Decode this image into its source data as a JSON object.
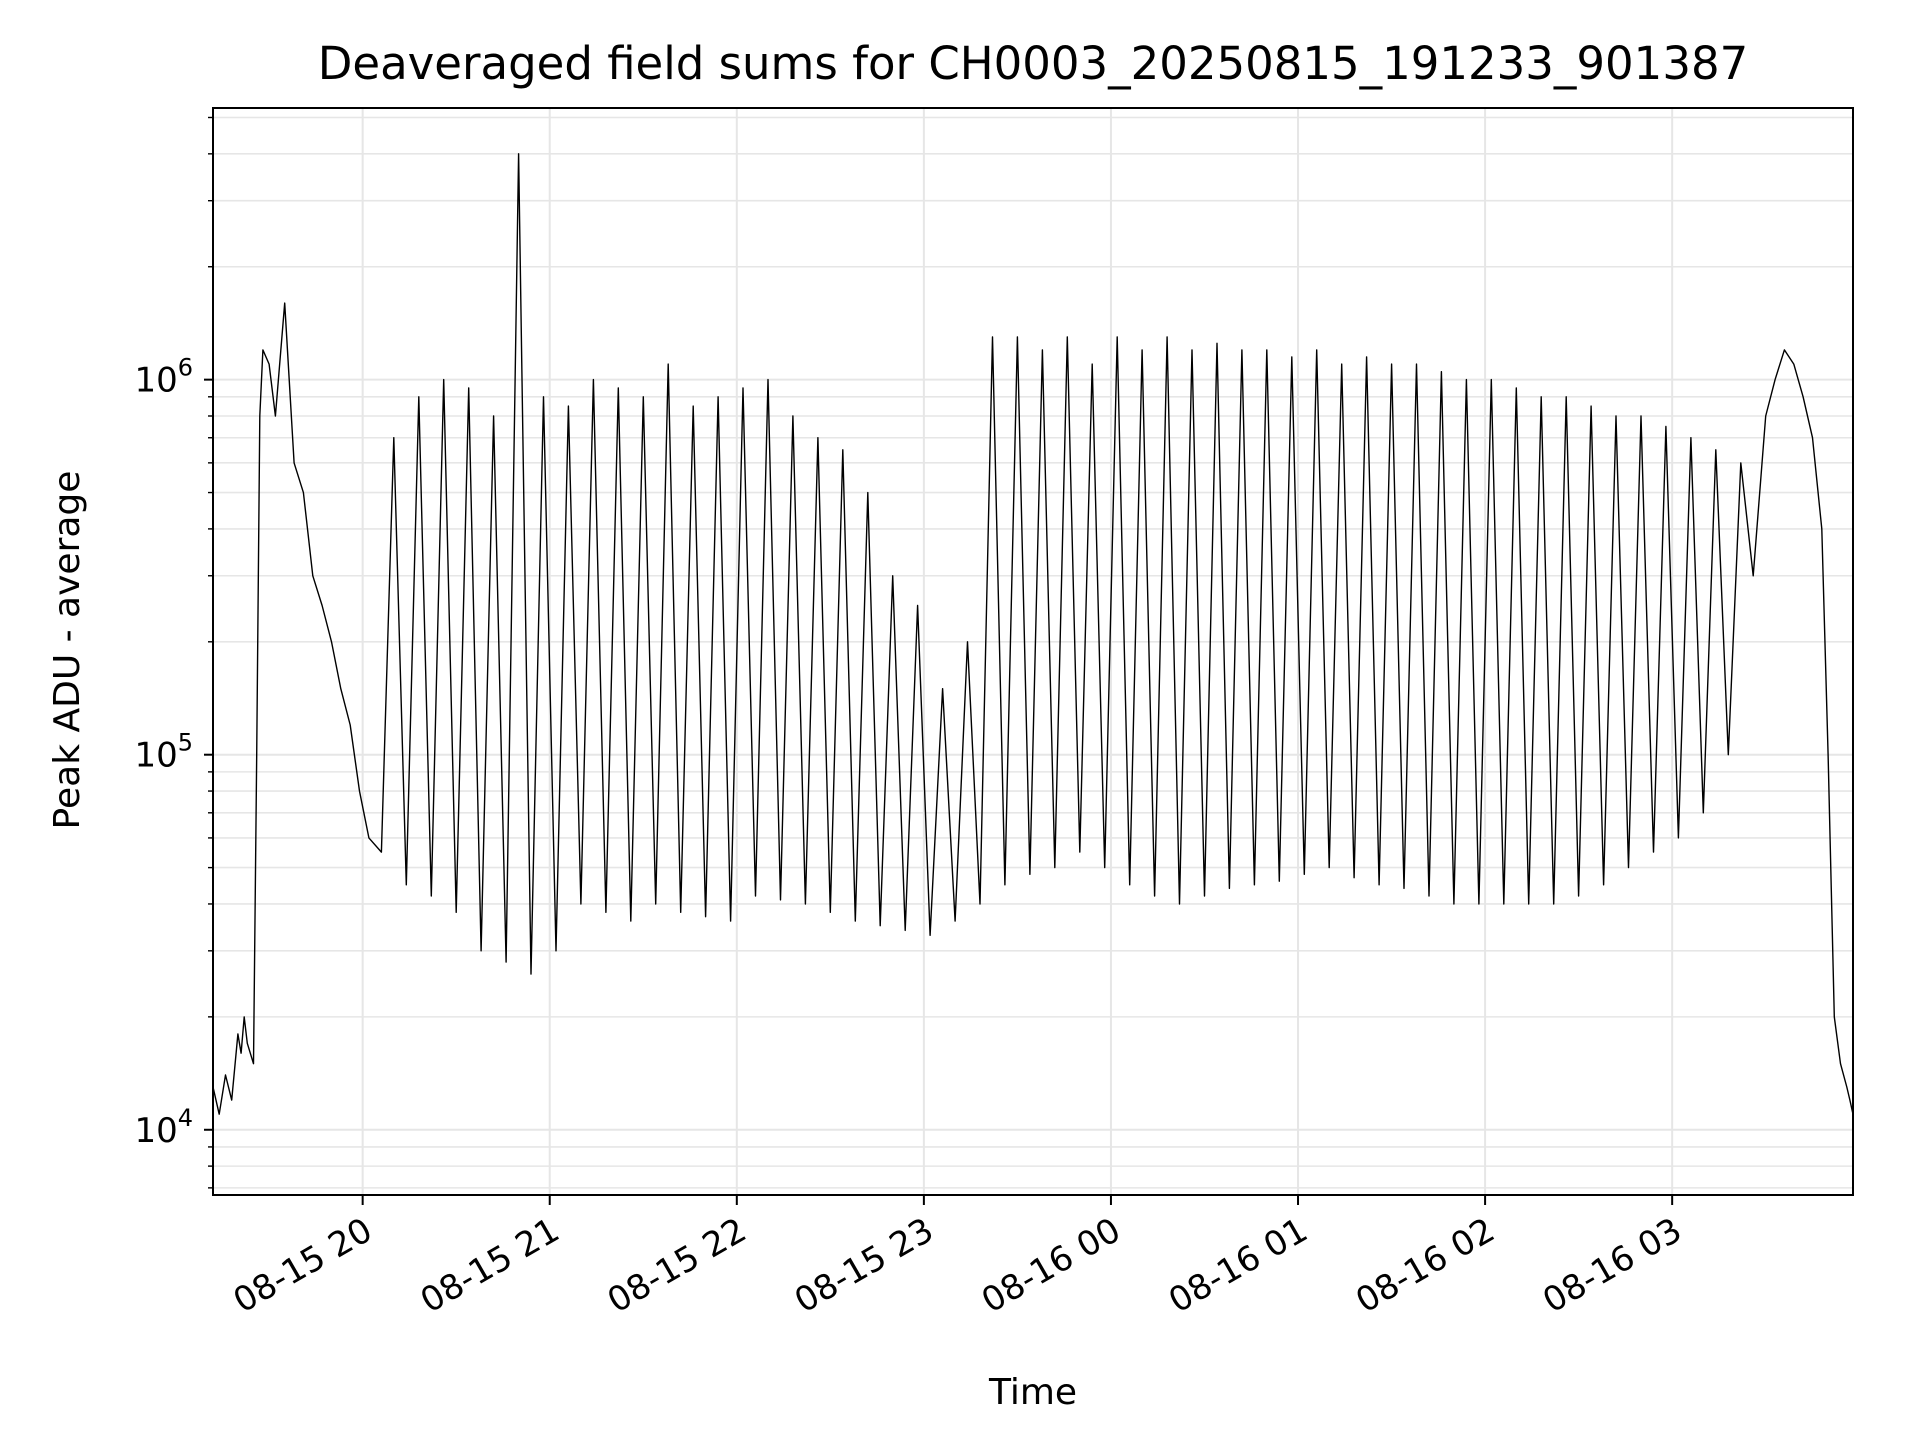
{
  "chart_data": {
    "type": "line",
    "title": "Deaveraged field sums for CH0003_20250815_191233_901387",
    "xlabel": "Time",
    "ylabel": "Peak ADU - average",
    "yscale": "log",
    "grid": true,
    "line_color": "#000000",
    "grid_color": "#e6e6e6",
    "xlim": [
      "2025-08-15 19:12:00",
      "2025-08-16 03:58:00"
    ],
    "ylim": [
      6700,
      5300000
    ],
    "x_ticks": [
      {
        "value": "2025-08-15 20:00:00",
        "label": "08-15 20"
      },
      {
        "value": "2025-08-15 21:00:00",
        "label": "08-15 21"
      },
      {
        "value": "2025-08-15 22:00:00",
        "label": "08-15 22"
      },
      {
        "value": "2025-08-15 23:00:00",
        "label": "08-15 23"
      },
      {
        "value": "2025-08-16 00:00:00",
        "label": "08-16 00"
      },
      {
        "value": "2025-08-16 01:00:00",
        "label": "08-16 01"
      },
      {
        "value": "2025-08-16 02:00:00",
        "label": "08-16 02"
      },
      {
        "value": "2025-08-16 03:00:00",
        "label": "08-16 03"
      }
    ],
    "y_ticks": [
      {
        "value": 10000,
        "base": "10",
        "exp": "4"
      },
      {
        "value": 100000,
        "base": "10",
        "exp": "5"
      },
      {
        "value": 1000000,
        "base": "10",
        "exp": "6"
      }
    ],
    "series": [
      {
        "name": "",
        "x": [
          "2025-08-15 19:12:00",
          "2025-08-15 19:14:00",
          "2025-08-15 19:16:00",
          "2025-08-15 19:18:00",
          "2025-08-15 19:20:00",
          "2025-08-15 19:21:00",
          "2025-08-15 19:22:00",
          "2025-08-15 19:23:00",
          "2025-08-15 19:25:00",
          "2025-08-15 19:26:00",
          "2025-08-15 19:27:00",
          "2025-08-15 19:28:00",
          "2025-08-15 19:30:00",
          "2025-08-15 19:32:00",
          "2025-08-15 19:35:00",
          "2025-08-15 19:38:00",
          "2025-08-15 19:41:00",
          "2025-08-15 19:44:00",
          "2025-08-15 19:47:00",
          "2025-08-15 19:50:00",
          "2025-08-15 19:53:00",
          "2025-08-15 19:56:00",
          "2025-08-15 19:59:00",
          "2025-08-15 20:02:00",
          "2025-08-15 20:06:00",
          "2025-08-15 20:10:00",
          "2025-08-15 20:14:00",
          "2025-08-15 20:18:00",
          "2025-08-15 20:22:00",
          "2025-08-15 20:26:00",
          "2025-08-15 20:30:00",
          "2025-08-15 20:34:00",
          "2025-08-15 20:38:00",
          "2025-08-15 20:42:00",
          "2025-08-15 20:46:00",
          "2025-08-15 20:50:00",
          "2025-08-15 20:54:00",
          "2025-08-15 20:58:00",
          "2025-08-15 21:02:00",
          "2025-08-15 21:06:00",
          "2025-08-15 21:10:00",
          "2025-08-15 21:14:00",
          "2025-08-15 21:18:00",
          "2025-08-15 21:22:00",
          "2025-08-15 21:26:00",
          "2025-08-15 21:30:00",
          "2025-08-15 21:34:00",
          "2025-08-15 21:38:00",
          "2025-08-15 21:42:00",
          "2025-08-15 21:46:00",
          "2025-08-15 21:50:00",
          "2025-08-15 21:54:00",
          "2025-08-15 21:58:00",
          "2025-08-15 22:02:00",
          "2025-08-15 22:06:00",
          "2025-08-15 22:10:00",
          "2025-08-15 22:14:00",
          "2025-08-15 22:18:00",
          "2025-08-15 22:22:00",
          "2025-08-15 22:26:00",
          "2025-08-15 22:30:00",
          "2025-08-15 22:34:00",
          "2025-08-15 22:38:00",
          "2025-08-15 22:42:00",
          "2025-08-15 22:46:00",
          "2025-08-15 22:50:00",
          "2025-08-15 22:54:00",
          "2025-08-15 22:58:00",
          "2025-08-15 23:02:00",
          "2025-08-15 23:06:00",
          "2025-08-15 23:10:00",
          "2025-08-15 23:14:00",
          "2025-08-15 23:18:00",
          "2025-08-15 23:22:00",
          "2025-08-15 23:26:00",
          "2025-08-15 23:30:00",
          "2025-08-15 23:34:00",
          "2025-08-15 23:38:00",
          "2025-08-15 23:42:00",
          "2025-08-15 23:46:00",
          "2025-08-15 23:50:00",
          "2025-08-15 23:54:00",
          "2025-08-15 23:58:00",
          "2025-08-16 00:02:00",
          "2025-08-16 00:06:00",
          "2025-08-16 00:10:00",
          "2025-08-16 00:14:00",
          "2025-08-16 00:18:00",
          "2025-08-16 00:22:00",
          "2025-08-16 00:26:00",
          "2025-08-16 00:30:00",
          "2025-08-16 00:34:00",
          "2025-08-16 00:38:00",
          "2025-08-16 00:42:00",
          "2025-08-16 00:46:00",
          "2025-08-16 00:50:00",
          "2025-08-16 00:54:00",
          "2025-08-16 00:58:00",
          "2025-08-16 01:02:00",
          "2025-08-16 01:06:00",
          "2025-08-16 01:10:00",
          "2025-08-16 01:14:00",
          "2025-08-16 01:18:00",
          "2025-08-16 01:22:00",
          "2025-08-16 01:26:00",
          "2025-08-16 01:30:00",
          "2025-08-16 01:34:00",
          "2025-08-16 01:38:00",
          "2025-08-16 01:42:00",
          "2025-08-16 01:46:00",
          "2025-08-16 01:50:00",
          "2025-08-16 01:54:00",
          "2025-08-16 01:58:00",
          "2025-08-16 02:02:00",
          "2025-08-16 02:06:00",
          "2025-08-16 02:10:00",
          "2025-08-16 02:14:00",
          "2025-08-16 02:18:00",
          "2025-08-16 02:22:00",
          "2025-08-16 02:26:00",
          "2025-08-16 02:30:00",
          "2025-08-16 02:34:00",
          "2025-08-16 02:38:00",
          "2025-08-16 02:42:00",
          "2025-08-16 02:46:00",
          "2025-08-16 02:50:00",
          "2025-08-16 02:54:00",
          "2025-08-16 02:58:00",
          "2025-08-16 03:02:00",
          "2025-08-16 03:06:00",
          "2025-08-16 03:10:00",
          "2025-08-16 03:14:00",
          "2025-08-16 03:18:00",
          "2025-08-16 03:22:00",
          "2025-08-16 03:26:00",
          "2025-08-16 03:30:00",
          "2025-08-16 03:33:00",
          "2025-08-16 03:36:00",
          "2025-08-16 03:39:00",
          "2025-08-16 03:42:00",
          "2025-08-16 03:45:00",
          "2025-08-16 03:48:00",
          "2025-08-16 03:50:00",
          "2025-08-16 03:52:00",
          "2025-08-16 03:54:00",
          "2025-08-16 03:56:00",
          "2025-08-16 03:57:00",
          "2025-08-16 03:58:00"
        ],
        "y": [
          13000,
          11000,
          14000,
          12000,
          18000,
          16000,
          20000,
          17000,
          15000,
          100000,
          800000,
          1200000,
          1100000,
          800000,
          1600000,
          600000,
          500000,
          300000,
          250000,
          200000,
          150000,
          120000,
          80000,
          60000,
          55000,
          700000,
          45000,
          900000,
          42000,
          1000000,
          38000,
          950000,
          30000,
          800000,
          28000,
          4000000,
          26000,
          900000,
          30000,
          850000,
          40000,
          1000000,
          38000,
          950000,
          36000,
          900000,
          40000,
          1100000,
          38000,
          850000,
          37000,
          900000,
          36000,
          950000,
          42000,
          1000000,
          41000,
          800000,
          40000,
          700000,
          38000,
          650000,
          36000,
          500000,
          35000,
          300000,
          34000,
          250000,
          33000,
          150000,
          36000,
          200000,
          40000,
          1300000,
          45000,
          1300000,
          48000,
          1200000,
          50000,
          1300000,
          55000,
          1100000,
          50000,
          1300000,
          45000,
          1200000,
          42000,
          1300000,
          40000,
          1200000,
          42000,
          1250000,
          44000,
          1200000,
          45000,
          1200000,
          46000,
          1150000,
          48000,
          1200000,
          50000,
          1100000,
          47000,
          1150000,
          45000,
          1100000,
          44000,
          1100000,
          42000,
          1050000,
          40000,
          1000000,
          40000,
          1000000,
          40000,
          950000,
          40000,
          900000,
          40000,
          900000,
          42000,
          850000,
          45000,
          800000,
          50000,
          800000,
          55000,
          750000,
          60000,
          700000,
          70000,
          650000,
          100000,
          600000,
          300000,
          800000,
          1000000,
          1200000,
          1100000,
          900000,
          700000,
          400000,
          100000,
          20000,
          15000,
          13000,
          12000,
          11000
        ]
      }
    ]
  }
}
